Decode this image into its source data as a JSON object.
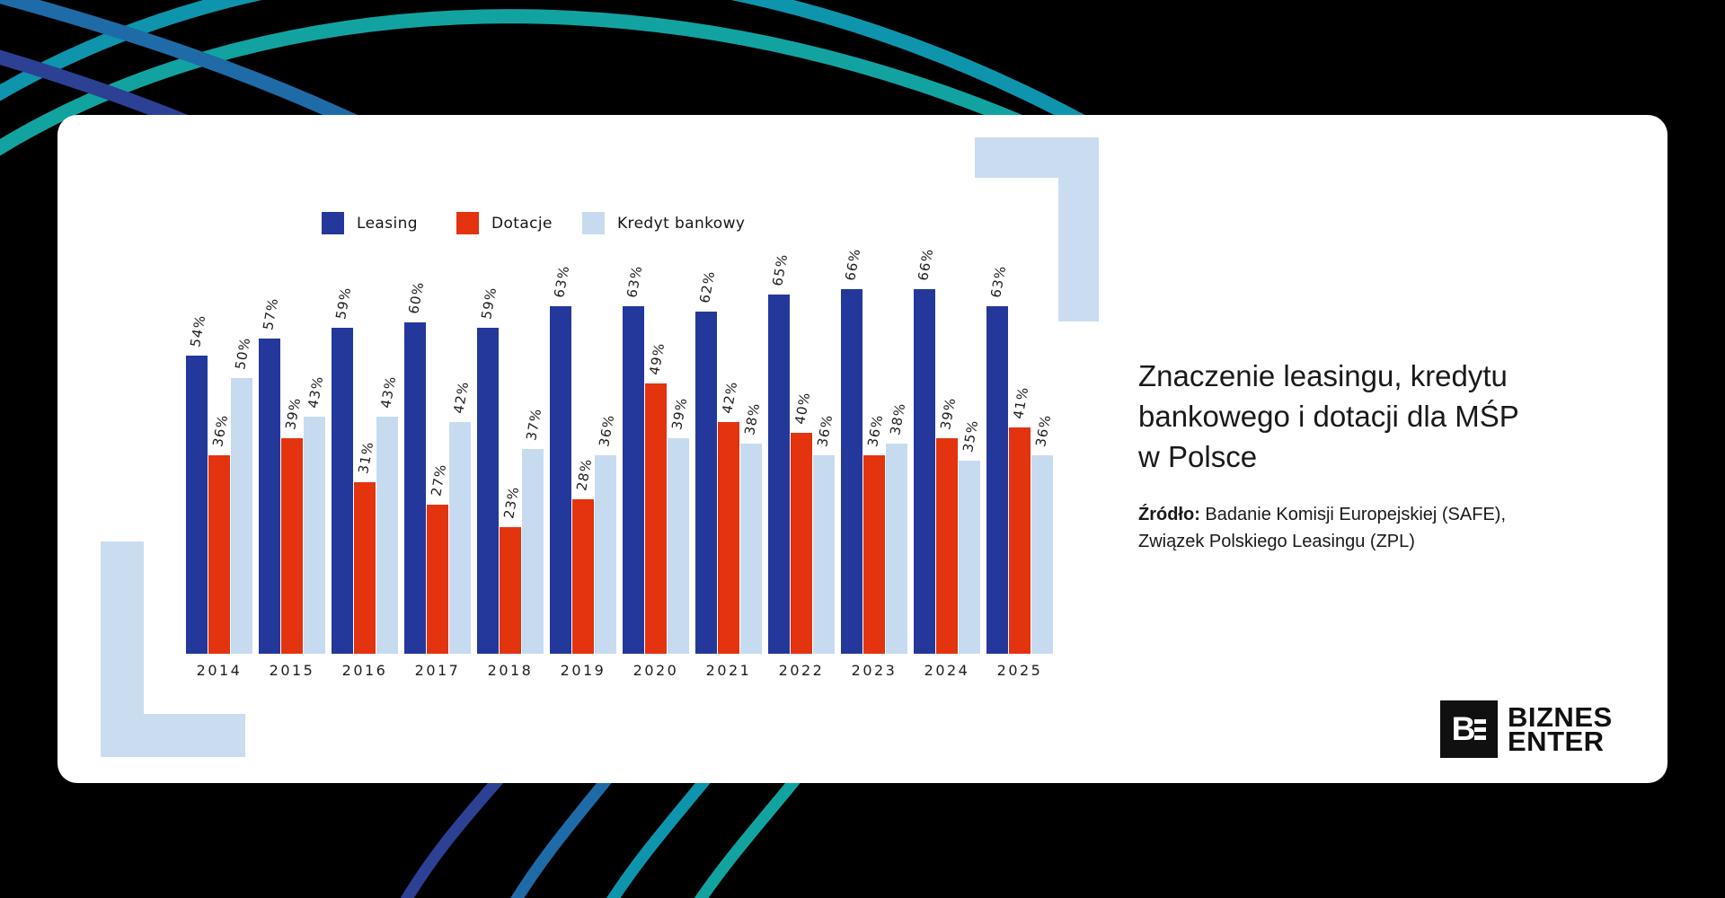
{
  "page": {
    "background_color": "#000000",
    "card_color": "#ffffff",
    "corner_decoration_color": "#cadcf0",
    "arc_colors": [
      "#2c4094",
      "#1e6ba8",
      "#0e95ad",
      "#12a3a1"
    ]
  },
  "legend": {
    "items": [
      {
        "label": "Leasing",
        "color": "#24389b"
      },
      {
        "label": "Dotacje",
        "color": "#e3330f"
      },
      {
        "label": "Kredyt bankowy",
        "color": "#c7dbf0"
      }
    ]
  },
  "chart_data": {
    "type": "bar",
    "categories": [
      "2014",
      "2015",
      "2016",
      "2017",
      "2018",
      "2019",
      "2020",
      "2021",
      "2022",
      "2023",
      "2024",
      "2025"
    ],
    "series": [
      {
        "name": "Leasing",
        "color": "#24389b",
        "values": [
          54,
          57,
          59,
          60,
          59,
          63,
          63,
          62,
          65,
          66,
          66,
          63
        ]
      },
      {
        "name": "Dotacje",
        "color": "#e3330f",
        "values": [
          36,
          39,
          31,
          27,
          23,
          28,
          49,
          42,
          40,
          36,
          39,
          41
        ]
      },
      {
        "name": "Kredyt bankowy",
        "color": "#c7dbf0",
        "values": [
          50,
          43,
          43,
          42,
          37,
          36,
          39,
          38,
          36,
          38,
          35,
          36
        ]
      }
    ],
    "value_suffix": "%",
    "title": "Znaczenie leasingu, kredytu bankowego i dotacji dla MŚP w Polsce",
    "xlabel": "",
    "ylabel": "",
    "ylim": [
      0,
      70
    ],
    "grid": false,
    "legend_position": "top",
    "bar_label_rotation": -80
  },
  "panel": {
    "title_lines": [
      "Znaczenie leasingu, kredytu",
      "bankowego i dotacji dla MŚP",
      "w Polsce"
    ],
    "source_label": "Źródło:",
    "source_text": " Badanie Komisji Europejskiej (SAFE), Związek Polskiego Leasingu (ZPL)"
  },
  "logo": {
    "mark_letter": "B",
    "line1": "BIZNES",
    "line2": "ENTER"
  }
}
